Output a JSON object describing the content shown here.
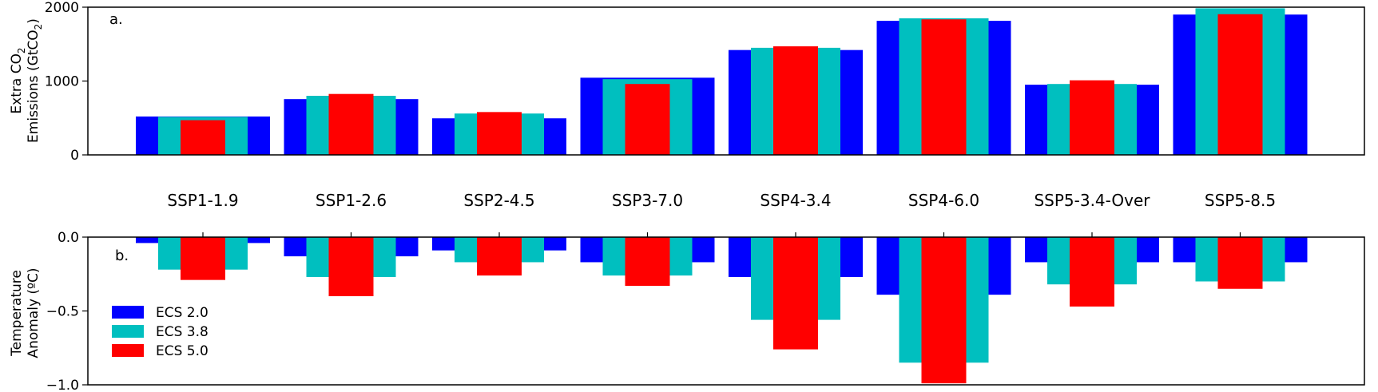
{
  "chart_data": [
    {
      "type": "bar",
      "panel_label": "a.",
      "ylabel_line1": "Extra CO",
      "ylabel_sub1": "2",
      "ylabel_line2_pre": "Emissions (GtCO",
      "ylabel_sub2": "2",
      "ylabel_line2_post": ")",
      "ylim": [
        0,
        2000
      ],
      "yticks": [
        0,
        1000,
        2000
      ],
      "ytick_labels": [
        "0",
        "1000",
        "2000"
      ],
      "categories": [
        "SSP1-1.9",
        "SSP1-2.6",
        "SSP2-4.5",
        "SSP3-7.0",
        "SSP4-3.4",
        "SSP4-6.0",
        "SSP5-3.4-Over",
        "SSP5-8.5"
      ],
      "series": [
        {
          "name": "ECS 2.0",
          "color": "#0000ff",
          "values": [
            520,
            755,
            495,
            1045,
            1420,
            1815,
            950,
            1900
          ]
        },
        {
          "name": "ECS 3.8",
          "color": "#00bfbf",
          "values": [
            515,
            800,
            560,
            1025,
            1450,
            1850,
            960,
            1985
          ]
        },
        {
          "name": "ECS 5.0",
          "color": "#ff0000",
          "values": [
            470,
            825,
            580,
            960,
            1470,
            1835,
            1010,
            1905
          ]
        }
      ]
    },
    {
      "type": "bar",
      "panel_label": "b.",
      "ylabel_line1": "Temperature",
      "ylabel_line2": "Anomaly (ºC)",
      "ylim": [
        -1.0,
        0.0
      ],
      "yticks": [
        0.0,
        -0.5,
        -1.0
      ],
      "ytick_labels": [
        "0.0",
        "−0.5",
        "−1.0"
      ],
      "categories": [
        "SSP1-1.9",
        "SSP1-2.6",
        "SSP2-4.5",
        "SSP3-7.0",
        "SSP4-3.4",
        "SSP4-6.0",
        "SSP5-3.4-Over",
        "SSP5-8.5"
      ],
      "series": [
        {
          "name": "ECS 2.0",
          "color": "#0000ff",
          "values": [
            -0.04,
            -0.13,
            -0.09,
            -0.17,
            -0.27,
            -0.39,
            -0.17,
            -0.17
          ]
        },
        {
          "name": "ECS 3.8",
          "color": "#00bfbf",
          "values": [
            -0.22,
            -0.27,
            -0.17,
            -0.26,
            -0.56,
            -0.85,
            -0.32,
            -0.3
          ]
        },
        {
          "name": "ECS 5.0",
          "color": "#ff0000",
          "values": [
            -0.29,
            -0.4,
            -0.26,
            -0.33,
            -0.76,
            -0.99,
            -0.47,
            -0.35
          ]
        }
      ],
      "legend": {
        "placement": "lower-left",
        "entries": [
          {
            "label": "ECS 2.0",
            "color": "#0000ff"
          },
          {
            "label": "ECS 3.8",
            "color": "#00bfbf"
          },
          {
            "label": "ECS 5.0",
            "color": "#ff0000"
          }
        ]
      }
    }
  ]
}
